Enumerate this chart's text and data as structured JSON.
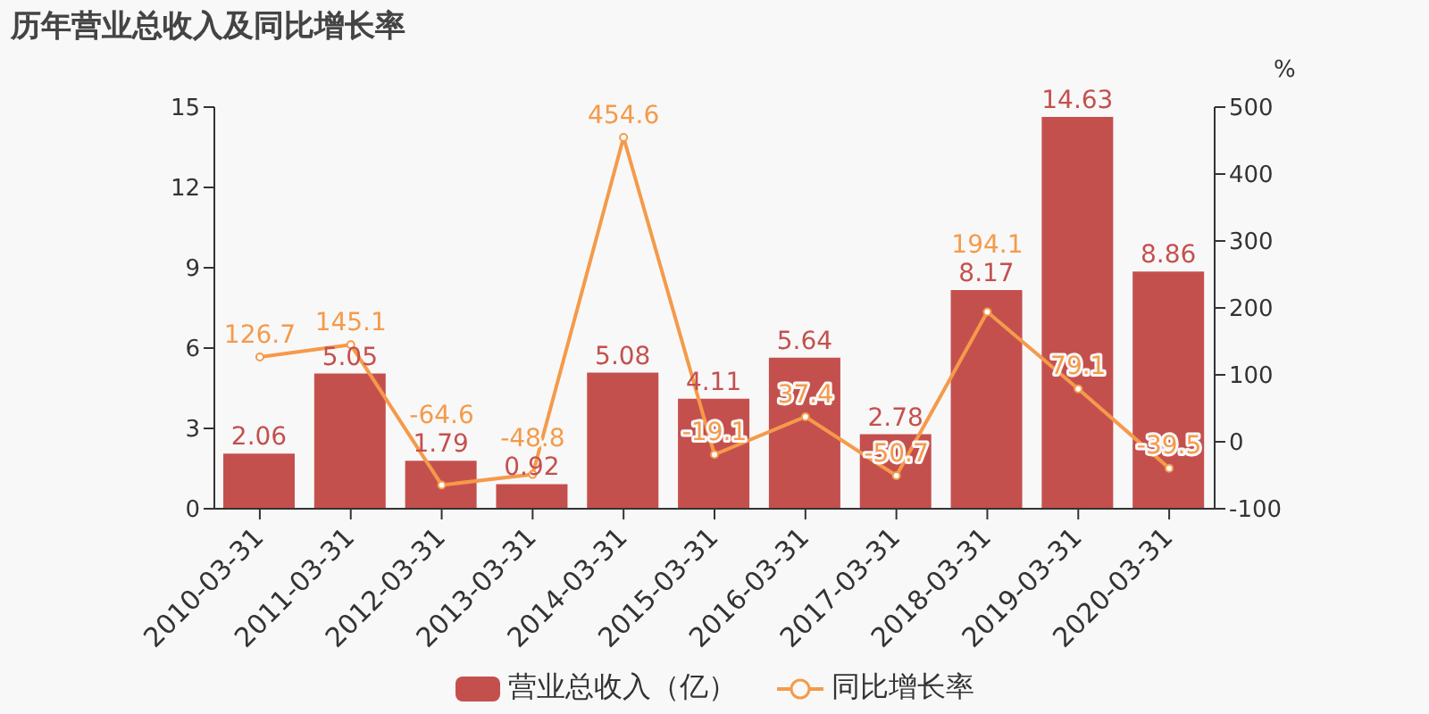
{
  "chart_data": {
    "type": "bar",
    "title": "历年营业总收入及同比增长率",
    "y2label": "%",
    "categories": [
      "2010-03-31",
      "2011-03-31",
      "2012-03-31",
      "2013-03-31",
      "2014-03-31",
      "2015-03-31",
      "2016-03-31",
      "2017-03-31",
      "2018-03-31",
      "2019-03-31",
      "2020-03-31"
    ],
    "series": [
      {
        "name": "营业总收入（亿）",
        "color": "#c4504e",
        "values": [
          2.06,
          5.05,
          1.79,
          0.92,
          5.08,
          4.11,
          5.64,
          2.78,
          8.17,
          14.63,
          8.86
        ]
      },
      {
        "name": "同比增长率",
        "type": "line",
        "axis": "y2",
        "color": "#f59a4a",
        "values": [
          126.7,
          145.1,
          -64.6,
          -48.8,
          454.6,
          -19.1,
          37.4,
          -50.7,
          194.1,
          79.1,
          -39.5
        ]
      }
    ],
    "ylim": [
      0,
      15
    ],
    "yticks": [
      0,
      3,
      6,
      9,
      12,
      15
    ],
    "y2lim": [
      -100,
      500
    ],
    "y2ticks": [
      -100,
      0,
      100,
      200,
      300,
      400,
      500
    ],
    "data_labels": true,
    "legend": "bottom",
    "grid": false,
    "marker": "circle"
  }
}
